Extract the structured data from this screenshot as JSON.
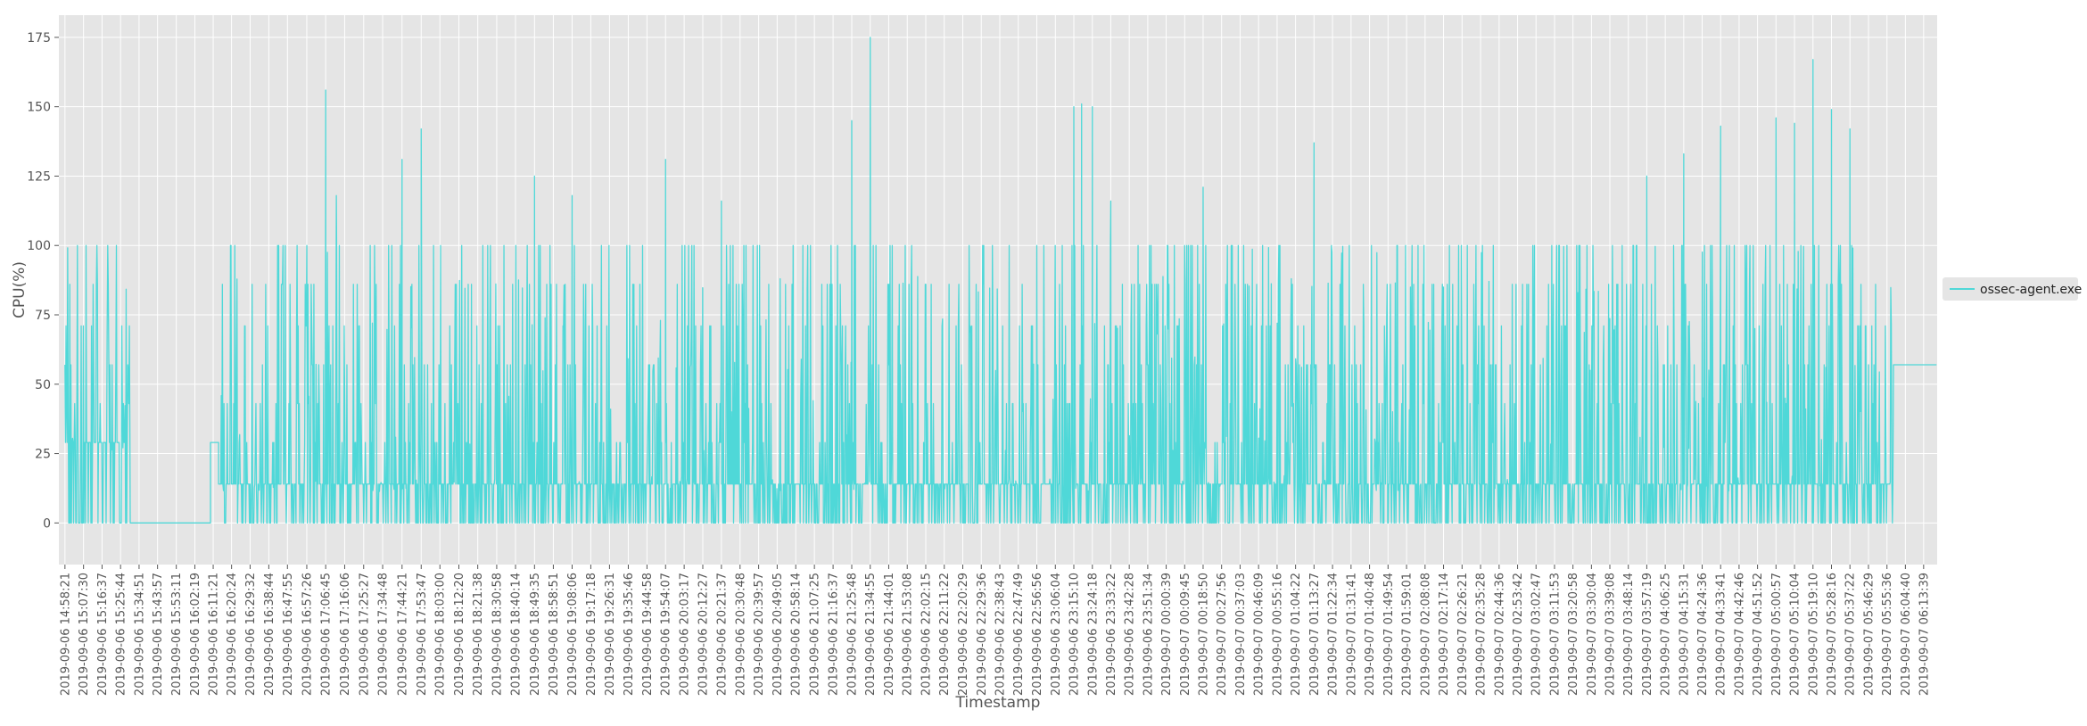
{
  "chart_data": {
    "type": "line",
    "title": "",
    "xlabel": "Timestamp",
    "ylabel": "CPU(%)",
    "ylim": [
      -15,
      183
    ],
    "y_ticks": [
      0,
      25,
      50,
      75,
      100,
      125,
      150,
      175
    ],
    "grid": true,
    "legend_position": "right",
    "style": "ggplot",
    "series": [
      {
        "name": "ossec-agent.exe",
        "color": "#4fd8d8",
        "segments": [
          {
            "start": "2019-09-06 14:58:21",
            "end": "2019-09-06 15:30:30",
            "pattern": "spiky",
            "low": 0,
            "mid": 29,
            "high": 100
          },
          {
            "start": "2019-09-06 15:30:30",
            "end": "2019-09-06 16:10:00",
            "pattern": "flat",
            "value": 0
          },
          {
            "start": "2019-09-06 16:10:00",
            "end": "2019-09-06 16:14:00",
            "pattern": "flat",
            "value": 29
          },
          {
            "start": "2019-09-06 16:14:00",
            "end": "2019-09-07 05:59:00",
            "pattern": "spiky",
            "low": 0,
            "mid": 14,
            "high": 100
          },
          {
            "start": "2019-09-07 05:59:00",
            "end": "2019-09-07 06:20:00",
            "pattern": "flat",
            "value": 57
          }
        ],
        "peaks": [
          {
            "x": "2019-09-06 17:06:45",
            "y": 156
          },
          {
            "x": "2019-09-06 17:12:00",
            "y": 118
          },
          {
            "x": "2019-09-06 17:44:21",
            "y": 131
          },
          {
            "x": "2019-09-06 17:53:47",
            "y": 142
          },
          {
            "x": "2019-09-06 18:49:35",
            "y": 125
          },
          {
            "x": "2019-09-06 19:08:06",
            "y": 118
          },
          {
            "x": "2019-09-06 19:54:07",
            "y": 131
          },
          {
            "x": "2019-09-06 20:21:37",
            "y": 116
          },
          {
            "x": "2019-09-06 21:25:48",
            "y": 145
          },
          {
            "x": "2019-09-06 21:34:55",
            "y": 175
          },
          {
            "x": "2019-09-06 23:15:10",
            "y": 150
          },
          {
            "x": "2019-09-06 23:19:00",
            "y": 151
          },
          {
            "x": "2019-09-06 23:24:18",
            "y": 150
          },
          {
            "x": "2019-09-06 23:33:22",
            "y": 116
          },
          {
            "x": "2019-09-07 00:18:50",
            "y": 121
          },
          {
            "x": "2019-09-07 01:13:27",
            "y": 137
          },
          {
            "x": "2019-09-07 03:57:19",
            "y": 125
          },
          {
            "x": "2019-09-07 04:15:31",
            "y": 133
          },
          {
            "x": "2019-09-07 04:33:41",
            "y": 143
          },
          {
            "x": "2019-09-07 05:00:57",
            "y": 146
          },
          {
            "x": "2019-09-07 05:10:04",
            "y": 144
          },
          {
            "x": "2019-09-07 05:19:10",
            "y": 167
          },
          {
            "x": "2019-09-07 05:28:16",
            "y": 149
          },
          {
            "x": "2019-09-07 05:37:22",
            "y": 142
          }
        ]
      }
    ],
    "x_tick_labels": [
      "2019-09-06 14:58:21",
      "2019-09-06 15:07:30",
      "2019-09-06 15:16:37",
      "2019-09-06 15:25:44",
      "2019-09-06 15:34:51",
      "2019-09-06 15:43:57",
      "2019-09-06 15:53:11",
      "2019-09-06 16:02:19",
      "2019-09-06 16:11:21",
      "2019-09-06 16:20:24",
      "2019-09-06 16:29:32",
      "2019-09-06 16:38:44",
      "2019-09-06 16:47:55",
      "2019-09-06 16:57:26",
      "2019-09-06 17:06:45",
      "2019-09-06 17:16:06",
      "2019-09-06 17:25:27",
      "2019-09-06 17:34:48",
      "2019-09-06 17:44:21",
      "2019-09-06 17:53:47",
      "2019-09-06 18:03:00",
      "2019-09-06 18:12:20",
      "2019-09-06 18:21:38",
      "2019-09-06 18:30:58",
      "2019-09-06 18:40:14",
      "2019-09-06 18:49:35",
      "2019-09-06 18:58:51",
      "2019-09-06 19:08:06",
      "2019-09-06 19:17:18",
      "2019-09-06 19:26:31",
      "2019-09-06 19:35:46",
      "2019-09-06 19:44:58",
      "2019-09-06 19:54:07",
      "2019-09-06 20:03:17",
      "2019-09-06 20:12:27",
      "2019-09-06 20:21:37",
      "2019-09-06 20:30:48",
      "2019-09-06 20:39:57",
      "2019-09-06 20:49:05",
      "2019-09-06 20:58:14",
      "2019-09-06 21:07:25",
      "2019-09-06 21:16:37",
      "2019-09-06 21:25:48",
      "2019-09-06 21:34:55",
      "2019-09-06 21:44:01",
      "2019-09-06 21:53:08",
      "2019-09-06 22:02:15",
      "2019-09-06 22:11:22",
      "2019-09-06 22:20:29",
      "2019-09-06 22:29:36",
      "2019-09-06 22:38:43",
      "2019-09-06 22:47:49",
      "2019-09-06 22:56:56",
      "2019-09-06 23:06:04",
      "2019-09-06 23:15:10",
      "2019-09-06 23:24:18",
      "2019-09-06 23:33:22",
      "2019-09-06 23:42:28",
      "2019-09-06 23:51:34",
      "2019-09-07 00:00:39",
      "2019-09-07 00:09:45",
      "2019-09-07 00:18:50",
      "2019-09-07 00:27:56",
      "2019-09-07 00:37:03",
      "2019-09-07 00:46:09",
      "2019-09-07 00:55:16",
      "2019-09-07 01:04:22",
      "2019-09-07 01:13:27",
      "2019-09-07 01:22:34",
      "2019-09-07 01:31:41",
      "2019-09-07 01:40:48",
      "2019-09-07 01:49:54",
      "2019-09-07 01:59:01",
      "2019-09-07 02:08:08",
      "2019-09-07 02:17:14",
      "2019-09-07 02:26:21",
      "2019-09-07 02:35:28",
      "2019-09-07 02:44:36",
      "2019-09-07 02:53:42",
      "2019-09-07 03:02:47",
      "2019-09-07 03:11:53",
      "2019-09-07 03:20:58",
      "2019-09-07 03:30:04",
      "2019-09-07 03:39:08",
      "2019-09-07 03:48:14",
      "2019-09-07 03:57:19",
      "2019-09-07 04:06:25",
      "2019-09-07 04:15:31",
      "2019-09-07 04:24:36",
      "2019-09-07 04:33:41",
      "2019-09-07 04:42:46",
      "2019-09-07 04:51:52",
      "2019-09-07 05:00:57",
      "2019-09-07 05:10:04",
      "2019-09-07 05:19:10",
      "2019-09-07 05:28:16",
      "2019-09-07 05:37:22",
      "2019-09-07 05:46:29",
      "2019-09-07 05:55:36",
      "2019-09-07 06:04:40",
      "2019-09-07 06:13:39"
    ]
  }
}
